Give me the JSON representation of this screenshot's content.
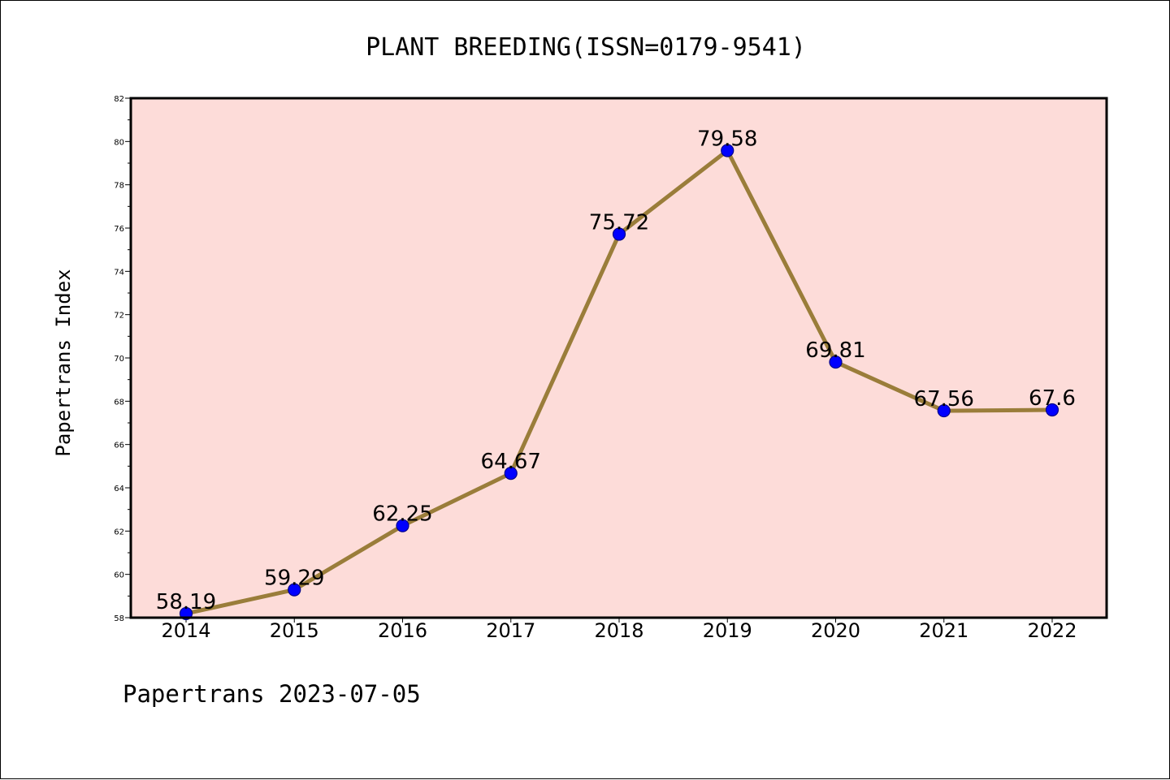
{
  "chart_data": {
    "type": "line",
    "title": "PLANT BREEDING(ISSN=0179-9541)",
    "xlabel": "",
    "ylabel": "Papertrans Index",
    "categories": [
      "2014",
      "2015",
      "2016",
      "2017",
      "2018",
      "2019",
      "2020",
      "2021",
      "2022"
    ],
    "series": [
      {
        "values": [
          58.19,
          59.29,
          62.25,
          64.67,
          75.72,
          79.58,
          69.81,
          67.56,
          67.6
        ],
        "labels": [
          "58.19",
          "59.29",
          "62.25",
          "64.67",
          "75.72",
          "79.58",
          "69.81",
          "67.56",
          "67.6"
        ]
      }
    ],
    "ylim": [
      58,
      82
    ],
    "yticks": [
      "58",
      "60",
      "62",
      "64",
      "66",
      "68",
      "70",
      "72",
      "74",
      "76",
      "78",
      "80",
      "82"
    ],
    "grid": false,
    "legend": "none",
    "colors": {
      "plot_background": "#fddcd9",
      "line": "#9a7d3a",
      "marker": "#0000ff",
      "marker_edge": "#00008b"
    }
  },
  "footer": "Papertrans 2023-07-05"
}
